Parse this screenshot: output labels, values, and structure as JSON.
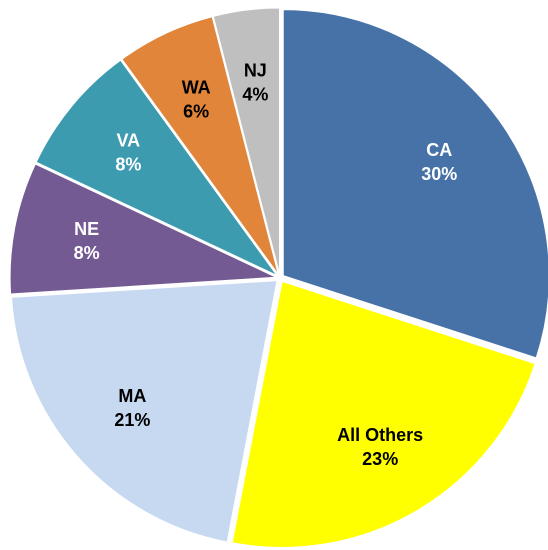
{
  "chart_data": {
    "type": "pie",
    "categories": [
      "CA",
      "All Others",
      "MA",
      "NE",
      "VA",
      "WA",
      "NJ"
    ],
    "values": [
      30,
      23,
      21,
      8,
      8,
      6,
      4
    ],
    "value_labels": [
      "30%",
      "23%",
      "21%",
      "8%",
      "8%",
      "6%",
      "4%"
    ],
    "colors": [
      "#4672a8",
      "#ffff00",
      "#c6d9f0",
      "#745a93",
      "#3d9bb0",
      "#e0853a",
      "#bfbfbf"
    ]
  }
}
